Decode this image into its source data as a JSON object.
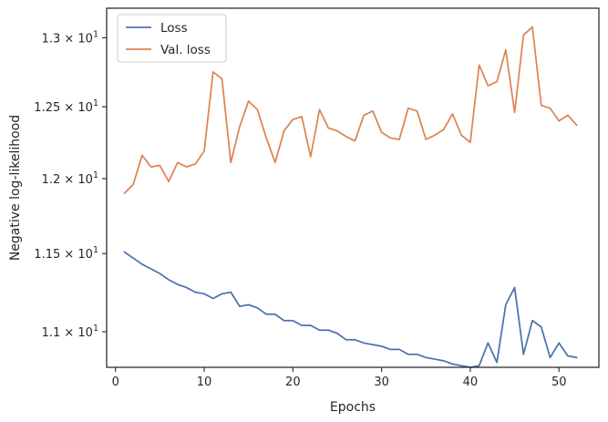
{
  "chart_data": {
    "type": "line",
    "xlabel": "Epochs",
    "ylabel": "Negative log-likelihood",
    "xlim": [
      -1,
      54.5
    ],
    "ylim": [
      10.78,
      13.22
    ],
    "y_scale": "log",
    "x_ticks": [
      0,
      10,
      20,
      30,
      40,
      50
    ],
    "x_tick_labels": [
      "0",
      "10",
      "20",
      "30",
      "40",
      "50"
    ],
    "y_ticks": [
      11.0,
      11.5,
      12.0,
      12.5,
      13.0
    ],
    "y_tick_labels": [
      {
        "mant": "1.1",
        "exp": "1"
      },
      {
        "mant": "1.15",
        "exp": "1"
      },
      {
        "mant": "1.2",
        "exp": "1"
      },
      {
        "mant": "1.25",
        "exp": "1"
      },
      {
        "mant": "1.3",
        "exp": "1"
      }
    ],
    "grid": false,
    "legend_position": "top-left",
    "x": [
      1,
      2,
      3,
      4,
      5,
      6,
      7,
      8,
      9,
      10,
      11,
      12,
      13,
      14,
      15,
      16,
      17,
      18,
      19,
      20,
      21,
      22,
      23,
      24,
      25,
      26,
      27,
      28,
      29,
      30,
      31,
      32,
      33,
      34,
      35,
      36,
      37,
      38,
      39,
      40,
      41,
      42,
      43,
      44,
      45,
      46,
      47,
      48,
      49,
      50,
      51,
      52
    ],
    "series": [
      {
        "name": "Loss",
        "color": "#4c72b0",
        "values": [
          11.51,
          11.47,
          11.43,
          11.4,
          11.37,
          11.33,
          11.3,
          11.28,
          11.25,
          11.24,
          11.21,
          11.24,
          11.25,
          11.16,
          11.17,
          11.15,
          11.11,
          11.11,
          11.07,
          11.07,
          11.04,
          11.04,
          11.01,
          11.01,
          10.99,
          10.95,
          10.95,
          10.93,
          10.92,
          10.91,
          10.89,
          10.89,
          10.86,
          10.86,
          10.84,
          10.83,
          10.82,
          10.8,
          10.79,
          10.78,
          10.79,
          10.93,
          10.81,
          11.17,
          11.28,
          10.86,
          11.07,
          11.03,
          10.84,
          10.93,
          10.85,
          10.84
        ]
      },
      {
        "name": "Val. loss",
        "color": "#dd8452",
        "values": [
          11.9,
          11.96,
          12.16,
          12.08,
          12.09,
          11.98,
          12.11,
          12.08,
          12.1,
          12.19,
          12.75,
          12.7,
          12.11,
          12.36,
          12.54,
          12.48,
          12.28,
          12.11,
          12.33,
          12.41,
          12.43,
          12.15,
          12.48,
          12.35,
          12.33,
          12.29,
          12.26,
          12.44,
          12.47,
          12.32,
          12.28,
          12.27,
          12.49,
          12.47,
          12.27,
          12.3,
          12.34,
          12.45,
          12.3,
          12.25,
          12.8,
          12.65,
          12.68,
          12.91,
          12.46,
          13.02,
          13.08,
          12.51,
          12.49,
          12.4,
          12.44,
          12.37
        ]
      }
    ]
  }
}
